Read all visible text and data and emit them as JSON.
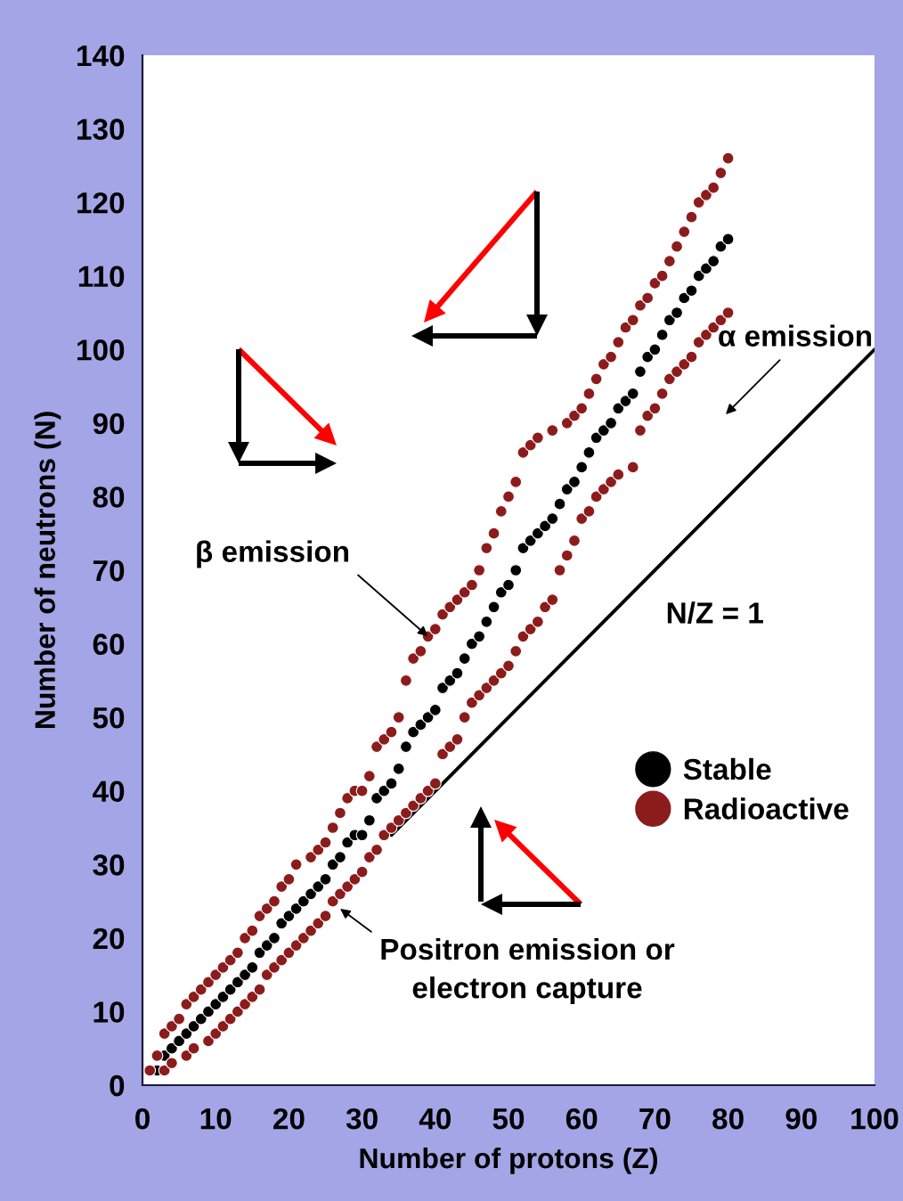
{
  "chart_data": {
    "type": "scatter",
    "xlabel": "Number of protons (Z)",
    "ylabel": "Number of neutrons (N)",
    "xlim": [
      0,
      100
    ],
    "xticks": [
      0,
      10,
      20,
      30,
      40,
      50,
      60,
      70,
      80,
      90,
      100
    ],
    "ylim": [
      0,
      140
    ],
    "yticks": [
      0,
      10,
      20,
      30,
      40,
      50,
      60,
      70,
      80,
      90,
      100,
      110,
      120,
      130,
      140
    ],
    "marker": "circle",
    "legend": "lower right",
    "annotations": [
      {
        "text": "β emission",
        "x": 39,
        "y": 61
      },
      "α emission",
      {
        "text": "Positron emission or\nelectron capture",
        "x": 27,
        "y": 24
      }
    ],
    "series": [
      {
        "name": "Stable",
        "color": "#000000",
        "x": [
          2,
          3,
          4,
          5,
          6,
          7,
          8,
          9,
          10,
          11,
          12,
          13,
          14,
          15,
          16,
          17,
          18,
          19,
          20,
          21,
          22,
          23,
          24,
          25,
          26,
          27,
          28,
          29,
          30,
          31,
          32,
          33,
          34,
          35,
          36,
          37,
          38,
          39,
          40,
          41,
          42,
          43,
          44,
          45,
          46,
          47,
          48,
          49,
          50,
          51,
          52,
          53,
          54,
          55,
          56,
          57,
          58,
          59,
          60,
          61,
          62,
          63,
          64,
          65,
          66,
          67,
          68,
          69,
          70,
          71,
          72,
          73,
          74,
          75,
          76,
          77,
          78,
          79,
          80
        ],
        "values": [
          2,
          4,
          5,
          6,
          7,
          8,
          9,
          10,
          11,
          12,
          13,
          14,
          15,
          16,
          18,
          19,
          20,
          22,
          23,
          24,
          25,
          26,
          27,
          28,
          30,
          31,
          33,
          34,
          34,
          36,
          39,
          40,
          41,
          43,
          46,
          48,
          49,
          50,
          51,
          54,
          55,
          56,
          58,
          60,
          61,
          63,
          65,
          67,
          68,
          70,
          73,
          74,
          75,
          76,
          77,
          79,
          81,
          82,
          84,
          86,
          88,
          89,
          90,
          92,
          93,
          94,
          97,
          99,
          100,
          102,
          104,
          105,
          107,
          108,
          110,
          111,
          112,
          114,
          115
        ]
      },
      {
        "name": "Radioactive",
        "color": "#8c1c1c",
        "x": [
          1,
          2,
          3,
          4,
          5,
          6,
          7,
          8,
          9,
          10,
          11,
          12,
          13,
          14,
          15,
          16,
          17,
          18,
          19,
          20,
          21,
          23,
          24,
          25,
          26,
          27,
          28,
          29,
          30,
          31,
          32,
          33,
          34,
          35,
          36,
          37,
          38,
          39,
          40,
          41,
          42,
          43,
          44,
          45,
          46,
          47,
          48,
          49,
          50,
          51,
          52,
          53,
          54,
          56,
          58,
          59,
          60,
          61,
          62,
          63,
          64,
          65,
          66,
          67,
          68,
          69,
          70,
          71,
          72,
          73,
          74,
          75,
          76,
          77,
          78,
          79,
          80,
          3,
          4,
          6,
          7,
          9,
          10,
          11,
          12,
          13,
          14,
          15,
          16,
          17,
          18,
          19,
          20,
          21,
          22,
          23,
          24,
          25,
          26,
          27,
          28,
          29,
          30,
          31,
          32,
          33,
          34,
          35,
          36,
          37,
          38,
          39,
          40,
          41,
          42,
          43,
          44,
          45,
          46,
          47,
          48,
          49,
          50,
          51,
          52,
          53,
          54,
          55,
          56,
          57,
          58,
          59,
          60,
          61,
          62,
          63,
          64,
          65,
          67,
          68,
          69,
          70,
          71,
          72,
          73,
          74,
          75,
          76,
          77,
          78,
          79,
          80
        ],
        "values": [
          2,
          4,
          7,
          8,
          9,
          11,
          12,
          13,
          14,
          15,
          16,
          17,
          18,
          20,
          21,
          23,
          24,
          25,
          27,
          28,
          30,
          31,
          32,
          33,
          35,
          37,
          39,
          40,
          40,
          42,
          46,
          47,
          48,
          50,
          55,
          58,
          59,
          61,
          62,
          64,
          65,
          66,
          67,
          68,
          70,
          73,
          75,
          78,
          80,
          82,
          86,
          87,
          88,
          89,
          90,
          91,
          92,
          94,
          96,
          98,
          99,
          101,
          103,
          104,
          106,
          107,
          109,
          110,
          112,
          114,
          116,
          118,
          120,
          121,
          122,
          124,
          126,
          2,
          3,
          4,
          5,
          6,
          7,
          8,
          9,
          10,
          11,
          12,
          13,
          15,
          16,
          17,
          18,
          19,
          20,
          21,
          22,
          23,
          25,
          26,
          27,
          28,
          29,
          31,
          32,
          34,
          35,
          36,
          37,
          38,
          39,
          40,
          41,
          45,
          46,
          47,
          50,
          52,
          53,
          54,
          55,
          56,
          57,
          59,
          61,
          62,
          63,
          65,
          66,
          70,
          72,
          74,
          77,
          78,
          80,
          81,
          82,
          83,
          84,
          89,
          91,
          92,
          94,
          96,
          97,
          98,
          99,
          101,
          102,
          103,
          104,
          105
        ]
      },
      {
        "type": "line",
        "name": "N/Z = 1",
        "color": "#000000",
        "marker": "none",
        "line_style": "solid",
        "x": [
          34,
          100
        ],
        "values": [
          34,
          100
        ]
      }
    ]
  }
}
